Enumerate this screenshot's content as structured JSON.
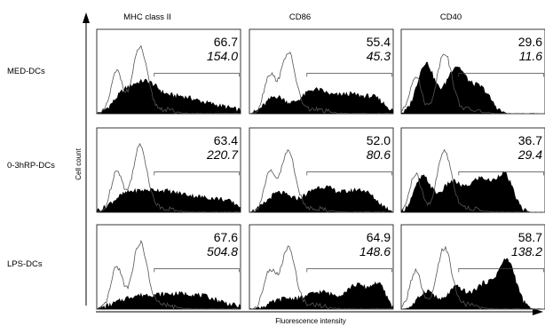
{
  "chart_data": {
    "type": "histogram-grid",
    "xlabel": "Fluorescence intensity",
    "ylabel": "Cell count",
    "columns": [
      "MHC class II",
      "CD86",
      "CD40"
    ],
    "rows": [
      "MED-DCs",
      "0-3hRP-DCs",
      "LPS-DCs"
    ],
    "panels": [
      [
        {
          "percent": "66.7",
          "mfi": "154.0",
          "shape": "mhc_med"
        },
        {
          "percent": "55.4",
          "mfi": "45.3",
          "shape": "cd86_med"
        },
        {
          "percent": "29.6",
          "mfi": "11.6",
          "shape": "cd40_med"
        }
      ],
      [
        {
          "percent": "63.4",
          "mfi": "220.7",
          "shape": "mhc_rp"
        },
        {
          "percent": "52.0",
          "mfi": "80.6",
          "shape": "cd86_rp"
        },
        {
          "percent": "36.7",
          "mfi": "29.4",
          "shape": "cd40_rp"
        }
      ],
      [
        {
          "percent": "67.6",
          "mfi": "504.8",
          "shape": "mhc_lps"
        },
        {
          "percent": "64.9",
          "mfi": "148.6",
          "shape": "cd86_lps"
        },
        {
          "percent": "58.7",
          "mfi": "138.2",
          "shape": "cd40_lps"
        }
      ]
    ]
  },
  "colors": {
    "filled": "#000000",
    "outline": "#555555",
    "frame": "#222222"
  }
}
